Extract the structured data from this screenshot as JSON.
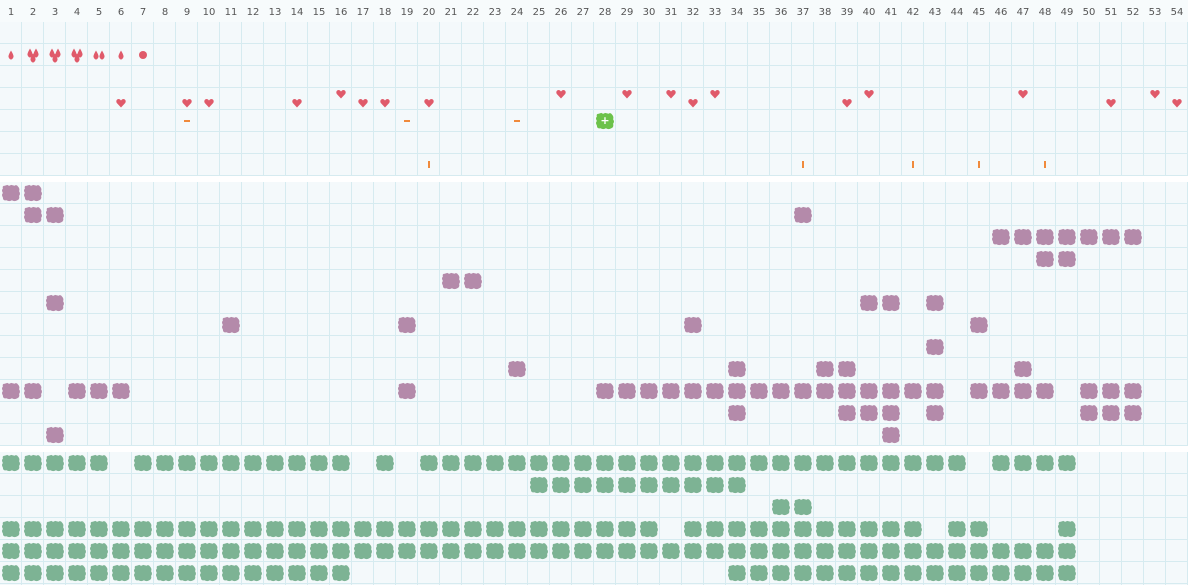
{
  "header": {
    "columns": [
      "1",
      "2",
      "3",
      "4",
      "5",
      "6",
      "7",
      "8",
      "9",
      "10",
      "11",
      "12",
      "13",
      "14",
      "15",
      "16",
      "17",
      "18",
      "19",
      "20",
      "21",
      "22",
      "23",
      "24",
      "25",
      "26",
      "27",
      "28",
      "29",
      "30",
      "31",
      "32",
      "33",
      "34",
      "35",
      "36",
      "37",
      "38",
      "39",
      "40",
      "41",
      "42",
      "43",
      "44",
      "45",
      "46",
      "47",
      "48",
      "49",
      "50",
      "51",
      "52",
      "53",
      "54"
    ]
  }
}
